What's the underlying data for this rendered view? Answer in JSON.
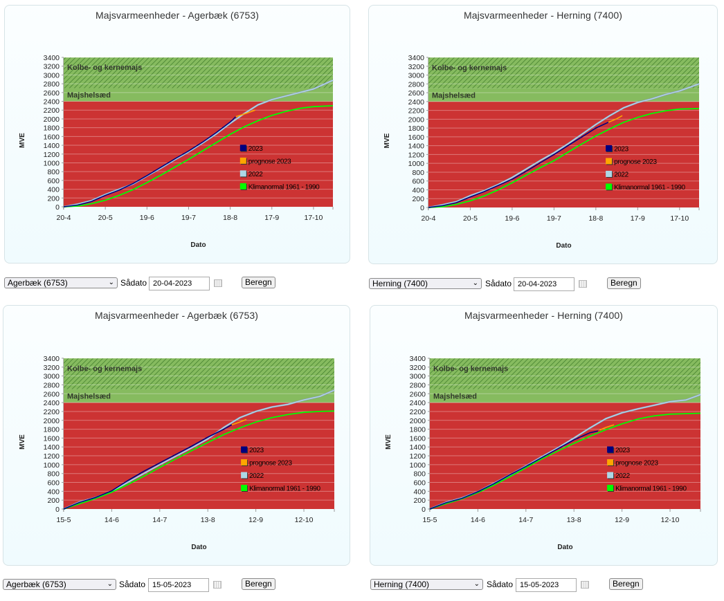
{
  "legend_colors": {
    "2023": "#000080",
    "prognose 2023": "#ffa500",
    "2022": "#add8e6",
    "Klimanormal 1961 - 1990": "#00ff00"
  },
  "zone_colors": {
    "red": "#cc3333",
    "green": "#86bb5f",
    "hatch": "#3d7a2a"
  },
  "panels": [
    {
      "title": "Majsvarmeenheder - Agerbæk (6753)",
      "controls": {
        "station": "Agerbæk (6753)",
        "sow_label": "Sådato",
        "sow_date": "20-04-2023",
        "button": "Beregn"
      }
    },
    {
      "title": "Majsvarmeenheder - Herning (7400)",
      "controls": {
        "station": "Herning (7400)",
        "sow_label": "Sådato",
        "sow_date": "20-04-2023",
        "button": "Beregn"
      }
    },
    {
      "title": "Majsvarmeenheder - Agerbæk (6753)",
      "controls": {
        "station": "Agerbæk (6753)",
        "sow_label": "Sådato",
        "sow_date": "15-05-2023",
        "button": "Beregn"
      }
    },
    {
      "title": "Majsvarmeenheder - Herning (7400)",
      "controls": {
        "station": "Herning (7400)",
        "sow_label": "Sådato",
        "sow_date": "15-05-2023",
        "button": "Beregn"
      }
    }
  ],
  "chart_data": [
    {
      "type": "line",
      "title": "Majsvarmeenheder - Agerbæk (6753)",
      "xlabel": "Dato",
      "ylabel": "MVE",
      "ylim": [
        0,
        3400
      ],
      "xlim": [
        0,
        194
      ],
      "yticks": [
        0,
        200,
        400,
        600,
        800,
        1000,
        1200,
        1400,
        1600,
        1800,
        2000,
        2200,
        2400,
        2600,
        2800,
        3000,
        3200,
        3400
      ],
      "xticks": [
        {
          "day": 0,
          "label": "20-4"
        },
        {
          "day": 30,
          "label": "20-5"
        },
        {
          "day": 60,
          "label": "19-6"
        },
        {
          "day": 90,
          "label": "19-7"
        },
        {
          "day": 120,
          "label": "18-8"
        },
        {
          "day": 150,
          "label": "17-9"
        },
        {
          "day": 180,
          "label": "17-10"
        }
      ],
      "zones": [
        {
          "label": "Kolbe- og kernemajs",
          "from": 2700,
          "to": 3400,
          "hatched": true
        },
        {
          "label": "Majshelsæd",
          "from": 2400,
          "to": 2700,
          "hatched": false
        }
      ],
      "series": [
        {
          "name": "2022",
          "x": [
            0,
            10,
            20,
            30,
            40,
            50,
            60,
            70,
            80,
            90,
            100,
            110,
            120,
            130,
            140,
            150,
            160,
            170,
            180,
            194
          ],
          "y": [
            0,
            60,
            140,
            280,
            400,
            520,
            700,
            880,
            1070,
            1250,
            1450,
            1660,
            1900,
            2120,
            2320,
            2440,
            2520,
            2600,
            2680,
            2880
          ]
        },
        {
          "name": "Klimanormal 1961 - 1990",
          "x": [
            0,
            10,
            20,
            30,
            40,
            50,
            60,
            70,
            80,
            90,
            100,
            110,
            120,
            130,
            140,
            150,
            160,
            170,
            180,
            194
          ],
          "y": [
            0,
            15,
            70,
            150,
            260,
            390,
            550,
            720,
            900,
            1080,
            1270,
            1460,
            1650,
            1820,
            1960,
            2080,
            2170,
            2240,
            2280,
            2300
          ]
        },
        {
          "name": "2023",
          "x": [
            0,
            10,
            20,
            30,
            40,
            50,
            60,
            70,
            80,
            90,
            100,
            110,
            120,
            124
          ],
          "y": [
            0,
            40,
            120,
            260,
            380,
            530,
            710,
            900,
            1090,
            1270,
            1470,
            1690,
            1930,
            2050
          ]
        },
        {
          "name": "prognose 2023",
          "x": [
            124,
            131,
            138
          ],
          "y": [
            2050,
            2120,
            2200
          ]
        }
      ],
      "legend": [
        "2023",
        "prognose 2023",
        "2022",
        "Klimanormal 1961 - 1990"
      ]
    },
    {
      "type": "line",
      "title": "Majsvarmeenheder - Herning (7400)",
      "xlabel": "Dato",
      "ylabel": "MVE",
      "ylim": [
        0,
        3400
      ],
      "xlim": [
        0,
        194
      ],
      "yticks": [
        0,
        200,
        400,
        600,
        800,
        1000,
        1200,
        1400,
        1600,
        1800,
        2000,
        2200,
        2400,
        2600,
        2800,
        3000,
        3200,
        3400
      ],
      "xticks": [
        {
          "day": 0,
          "label": "20-4"
        },
        {
          "day": 30,
          "label": "20-5"
        },
        {
          "day": 60,
          "label": "19-6"
        },
        {
          "day": 90,
          "label": "19-7"
        },
        {
          "day": 120,
          "label": "18-8"
        },
        {
          "day": 150,
          "label": "17-9"
        },
        {
          "day": 180,
          "label": "17-10"
        }
      ],
      "zones": [
        {
          "label": "Kolbe- og kernemajs",
          "from": 2700,
          "to": 3400,
          "hatched": true
        },
        {
          "label": "Majshelsæd",
          "from": 2400,
          "to": 2700,
          "hatched": false
        }
      ],
      "series": [
        {
          "name": "2022",
          "x": [
            0,
            10,
            20,
            30,
            40,
            50,
            60,
            70,
            80,
            90,
            100,
            110,
            120,
            130,
            140,
            150,
            160,
            170,
            180,
            194
          ],
          "y": [
            0,
            60,
            130,
            270,
            380,
            520,
            680,
            870,
            1060,
            1240,
            1440,
            1660,
            1880,
            2080,
            2260,
            2380,
            2460,
            2560,
            2640,
            2800
          ]
        },
        {
          "name": "Klimanormal 1961 - 1990",
          "x": [
            0,
            10,
            20,
            30,
            40,
            50,
            60,
            70,
            80,
            90,
            100,
            110,
            120,
            130,
            140,
            150,
            160,
            170,
            180,
            194
          ],
          "y": [
            0,
            15,
            70,
            150,
            260,
            400,
            560,
            730,
            900,
            1060,
            1250,
            1440,
            1620,
            1780,
            1930,
            2040,
            2130,
            2190,
            2230,
            2240
          ]
        },
        {
          "name": "2023",
          "x": [
            0,
            10,
            20,
            30,
            40,
            50,
            60,
            70,
            80,
            90,
            100,
            110,
            120,
            129
          ],
          "y": [
            0,
            40,
            110,
            240,
            360,
            500,
            640,
            820,
            1010,
            1200,
            1400,
            1600,
            1800,
            1930
          ]
        },
        {
          "name": "prognose 2023",
          "x": [
            129,
            135,
            139
          ],
          "y": [
            1930,
            2010,
            2080
          ]
        }
      ],
      "legend": [
        "2023",
        "prognose 2023",
        "2022",
        "Klimanormal 1961 - 1990"
      ]
    },
    {
      "type": "line",
      "title": "Majsvarmeenheder - Agerbæk (6753)",
      "xlabel": "Dato",
      "ylabel": "MVE",
      "ylim": [
        0,
        3400
      ],
      "xlim": [
        0,
        169
      ],
      "yticks": [
        0,
        200,
        400,
        600,
        800,
        1000,
        1200,
        1400,
        1600,
        1800,
        2000,
        2200,
        2400,
        2600,
        2800,
        3000,
        3200,
        3400
      ],
      "xticks": [
        {
          "day": 0,
          "label": "15-5"
        },
        {
          "day": 30,
          "label": "14-6"
        },
        {
          "day": 60,
          "label": "14-7"
        },
        {
          "day": 90,
          "label": "13-8"
        },
        {
          "day": 120,
          "label": "12-9"
        },
        {
          "day": 150,
          "label": "12-10"
        }
      ],
      "zones": [
        {
          "label": "Kolbe- og kernemajs",
          "from": 2700,
          "to": 3400,
          "hatched": true
        },
        {
          "label": "Majshelsæd",
          "from": 2400,
          "to": 2700,
          "hatched": false
        }
      ],
      "series": [
        {
          "name": "2022",
          "x": [
            0,
            10,
            20,
            30,
            40,
            50,
            60,
            70,
            80,
            90,
            100,
            110,
            120,
            130,
            140,
            150,
            160,
            169
          ],
          "y": [
            0,
            160,
            260,
            400,
            600,
            800,
            1000,
            1190,
            1380,
            1580,
            1840,
            2060,
            2200,
            2300,
            2360,
            2460,
            2540,
            2680
          ]
        },
        {
          "name": "Klimanormal 1961 - 1990",
          "x": [
            0,
            10,
            20,
            30,
            40,
            50,
            60,
            70,
            80,
            90,
            100,
            110,
            120,
            130,
            140,
            150,
            160,
            169
          ],
          "y": [
            0,
            120,
            240,
            380,
            550,
            740,
            940,
            1130,
            1320,
            1500,
            1680,
            1830,
            1960,
            2060,
            2130,
            2180,
            2200,
            2210
          ]
        },
        {
          "name": "2023",
          "x": [
            0,
            10,
            20,
            30,
            40,
            50,
            60,
            70,
            80,
            90,
            100,
            105
          ],
          "y": [
            0,
            150,
            260,
            410,
            640,
            850,
            1040,
            1230,
            1420,
            1620,
            1800,
            1900
          ]
        },
        {
          "name": "prognose 2023",
          "x": [
            105,
            110,
            114
          ],
          "y": [
            1900,
            1960,
            2020
          ]
        }
      ],
      "legend": [
        "2023",
        "prognose 2023",
        "2022",
        "Klimanormal 1961 - 1990"
      ]
    },
    {
      "type": "line",
      "title": "Majsvarmeenheder - Herning (7400)",
      "xlabel": "Dato",
      "ylabel": "MVE",
      "ylim": [
        0,
        3400
      ],
      "xlim": [
        0,
        169
      ],
      "yticks": [
        0,
        200,
        400,
        600,
        800,
        1000,
        1200,
        1400,
        1600,
        1800,
        2000,
        2200,
        2400,
        2600,
        2800,
        3000,
        3200,
        3400
      ],
      "xticks": [
        {
          "day": 0,
          "label": "15-5"
        },
        {
          "day": 30,
          "label": "14-6"
        },
        {
          "day": 60,
          "label": "14-7"
        },
        {
          "day": 90,
          "label": "13-8"
        },
        {
          "day": 120,
          "label": "12-9"
        },
        {
          "day": 150,
          "label": "12-10"
        }
      ],
      "zones": [
        {
          "label": "Kolbe- og kernemajs",
          "from": 2700,
          "to": 3400,
          "hatched": true
        },
        {
          "label": "Majshelsæd",
          "from": 2400,
          "to": 2700,
          "hatched": false
        }
      ],
      "series": [
        {
          "name": "2022",
          "x": [
            0,
            10,
            20,
            30,
            40,
            50,
            60,
            70,
            80,
            90,
            100,
            110,
            120,
            130,
            140,
            150,
            160,
            169
          ],
          "y": [
            0,
            150,
            250,
            390,
            580,
            770,
            970,
            1180,
            1380,
            1600,
            1830,
            2040,
            2170,
            2260,
            2340,
            2420,
            2460,
            2580
          ]
        },
        {
          "name": "Klimanormal 1961 - 1990",
          "x": [
            0,
            10,
            20,
            30,
            40,
            50,
            60,
            70,
            80,
            90,
            100,
            110,
            120,
            130,
            140,
            150,
            160,
            169
          ],
          "y": [
            0,
            120,
            230,
            370,
            540,
            730,
            930,
            1130,
            1310,
            1480,
            1640,
            1790,
            1920,
            2030,
            2100,
            2140,
            2150,
            2160
          ]
        },
        {
          "name": "2023",
          "x": [
            0,
            10,
            20,
            30,
            40,
            50,
            60,
            70,
            80,
            90,
            100,
            105
          ],
          "y": [
            0,
            140,
            240,
            390,
            570,
            770,
            960,
            1160,
            1360,
            1560,
            1720,
            1760
          ]
        },
        {
          "name": "prognose 2023",
          "x": [
            106,
            110,
            115
          ],
          "y": [
            1780,
            1840,
            1900
          ]
        }
      ],
      "legend": [
        "2023",
        "prognose 2023",
        "2022",
        "Klimanormal 1961 - 1990"
      ]
    }
  ]
}
